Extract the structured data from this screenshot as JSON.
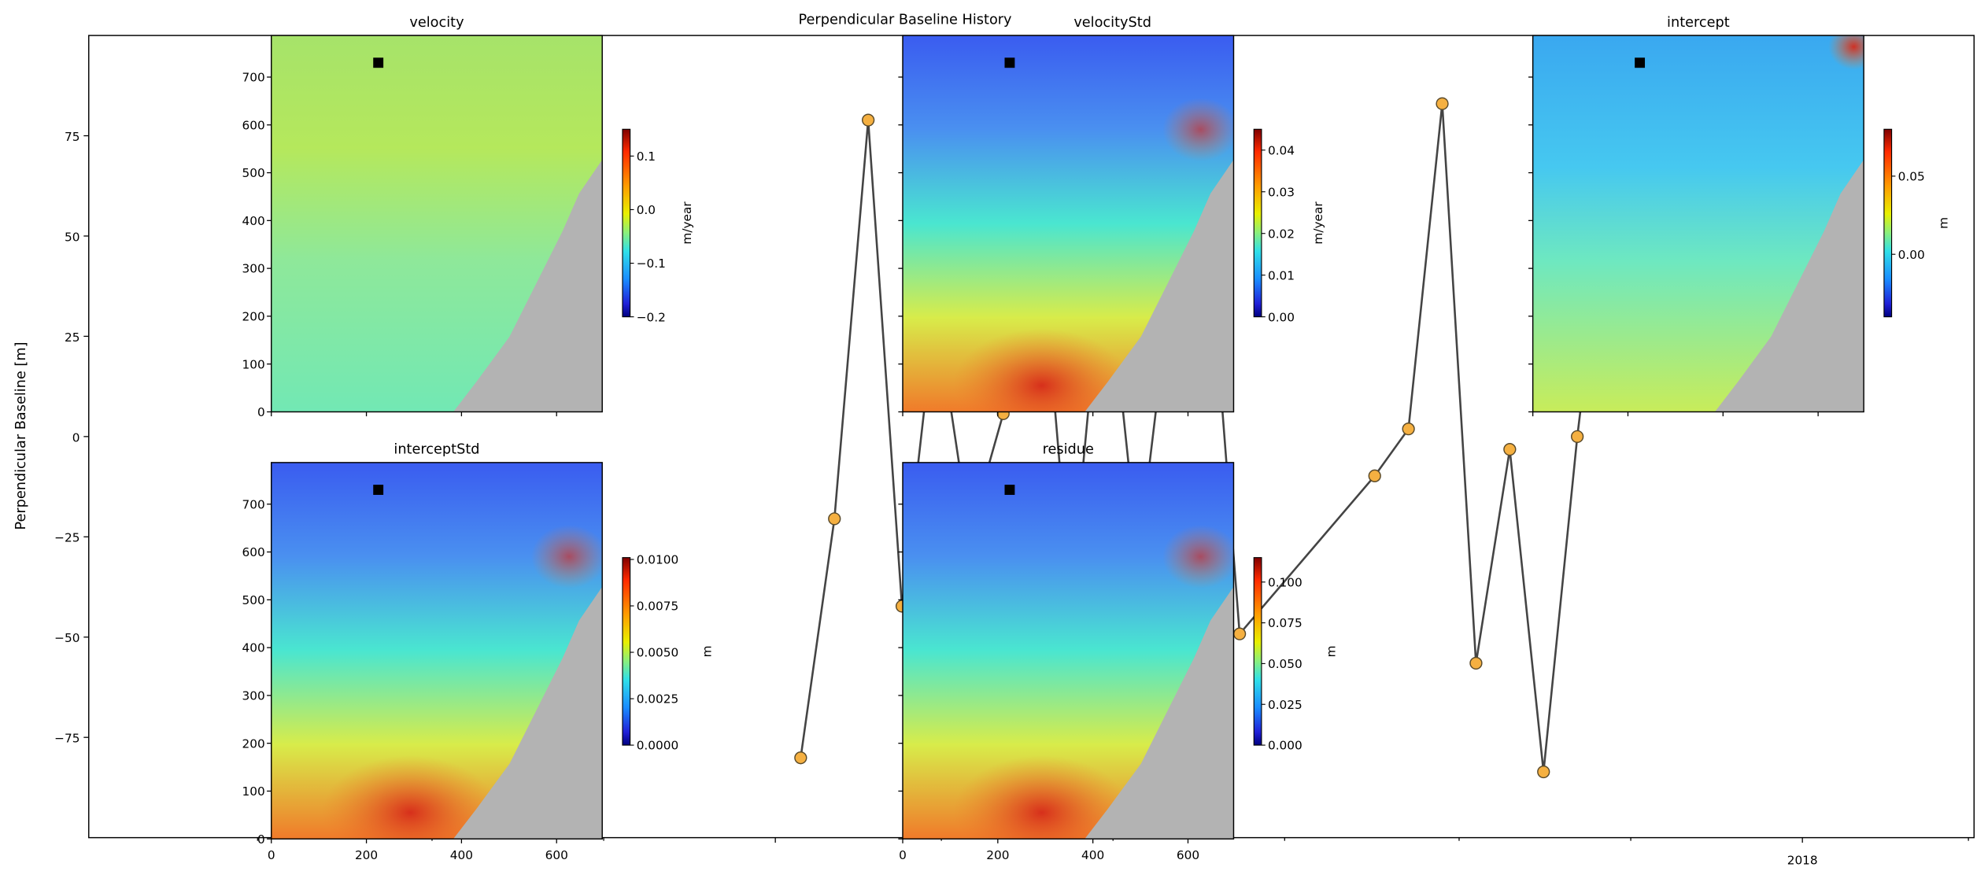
{
  "chart_data": [
    {
      "type": "line",
      "title": "Perpendicular Baseline History",
      "ylabel": "Perpendicular Baseline [m]",
      "xlabel": "",
      "ylim": [
        -100,
        100
      ],
      "xlim": [
        "2016-05-02",
        "2018-03-03"
      ],
      "yticks": [
        75,
        50,
        25,
        0,
        -25,
        -50,
        -75
      ],
      "ytick_labels": [
        "75",
        "50",
        "25",
        "0",
        "−25",
        "−50",
        "−75"
      ],
      "xtick_labels": [
        {
          "date": "2018-01-01",
          "label": "2018"
        }
      ],
      "grid": false,
      "line_color": "#444444",
      "marker_color": "#f5b041",
      "marker_edge_color": "#5a4a2a",
      "x": [
        "2017-01-10",
        "2017-01-22",
        "2017-02-03",
        "2017-02-15",
        "2017-02-27",
        "2017-03-11",
        "2017-03-23",
        "2017-04-04",
        "2017-04-16",
        "2017-04-28",
        "2017-05-10",
        "2017-05-22",
        "2017-06-03",
        "2017-06-15",
        "2017-08-02",
        "2017-08-14",
        "2017-08-26",
        "2017-09-07",
        "2017-09-19",
        "2017-10-01",
        "2017-10-13",
        "2017-10-25"
      ],
      "values": [
        -80.1,
        -20.5,
        78.9,
        -42.3,
        32,
        -24,
        5.7,
        60,
        -40,
        50,
        -30,
        40,
        60,
        -49.2,
        -9.8,
        1.9,
        83.0,
        -56.5,
        -3.2,
        -83.6,
        0.0,
        70
      ]
    },
    {
      "type": "heatmap",
      "title": "velocity",
      "colorbar_label": "m/year",
      "colormap": "jet",
      "vmin": -0.2,
      "vmax": 0.15,
      "cbar_ticks": [
        0.1,
        0.0,
        -0.1,
        -0.2
      ],
      "cbar_tick_labels": [
        "0.1",
        "0.0",
        "−0.1",
        "−0.2"
      ],
      "extent": [
        0,
        696,
        0,
        787
      ],
      "yticks": [
        "0",
        "100",
        "200",
        "300",
        "400",
        "500",
        "600",
        "700"
      ],
      "xticks": [
        "0",
        "200",
        "400",
        "600"
      ],
      "show_ytick_labels": true,
      "show_xtick_labels": false,
      "reference_point": [
        225,
        730
      ]
    },
    {
      "type": "heatmap",
      "title": "velocityStd",
      "colorbar_label": "m/year",
      "colormap": "jet",
      "vmin": 0.0,
      "vmax": 0.045,
      "cbar_ticks": [
        0.04,
        0.03,
        0.02,
        0.01,
        0.0
      ],
      "cbar_tick_labels": [
        "0.04",
        "0.03",
        "0.02",
        "0.01",
        "0.00"
      ],
      "extent": [
        0,
        696,
        0,
        787
      ],
      "yticks": [
        "0",
        "100",
        "200",
        "300",
        "400",
        "500",
        "600",
        "700"
      ],
      "xticks": [
        "0",
        "200",
        "400",
        "600"
      ],
      "show_ytick_labels": false,
      "show_xtick_labels": false,
      "reference_point": [
        225,
        730
      ]
    },
    {
      "type": "heatmap",
      "title": "intercept",
      "colorbar_label": "m",
      "colormap": "jet",
      "vmin": -0.04,
      "vmax": 0.08,
      "cbar_ticks": [
        0.05,
        0.0
      ],
      "cbar_tick_labels": [
        "0.05",
        "0.00"
      ],
      "extent": [
        0,
        696,
        0,
        787
      ],
      "yticks": [
        "0",
        "100",
        "200",
        "300",
        "400",
        "500",
        "600",
        "700"
      ],
      "xticks": [
        "0",
        "200",
        "400",
        "600"
      ],
      "show_ytick_labels": false,
      "show_xtick_labels": false,
      "reference_point": [
        225,
        730
      ]
    },
    {
      "type": "heatmap",
      "title": "interceptStd",
      "colorbar_label": "m",
      "colormap": "jet",
      "vmin": 0.0,
      "vmax": 0.0101,
      "cbar_ticks": [
        0.01,
        0.0075,
        0.005,
        0.0025,
        0.0
      ],
      "cbar_tick_labels": [
        "0.0100",
        "0.0075",
        "0.0050",
        "0.0025",
        "0.0000"
      ],
      "extent": [
        0,
        696,
        0,
        787
      ],
      "yticks": [
        "0",
        "100",
        "200",
        "300",
        "400",
        "500",
        "600",
        "700"
      ],
      "xticks": [
        "0",
        "200",
        "400",
        "600"
      ],
      "show_ytick_labels": true,
      "show_xtick_labels": true,
      "reference_point": [
        225,
        730
      ]
    },
    {
      "type": "heatmap",
      "title": "residue",
      "colorbar_label": "m",
      "colormap": "jet",
      "vmin": 0.0,
      "vmax": 0.115,
      "cbar_ticks": [
        0.1,
        0.075,
        0.05,
        0.025,
        0.0
      ],
      "cbar_tick_labels": [
        "0.100",
        "0.075",
        "0.050",
        "0.025",
        "0.000"
      ],
      "extent": [
        0,
        696,
        0,
        787
      ],
      "yticks": [
        "0",
        "100",
        "200",
        "300",
        "400",
        "500",
        "600",
        "700"
      ],
      "xticks": [
        "0",
        "200",
        "400",
        "600"
      ],
      "show_ytick_labels": false,
      "show_xtick_labels": true,
      "reference_point": [
        225,
        730
      ]
    }
  ]
}
